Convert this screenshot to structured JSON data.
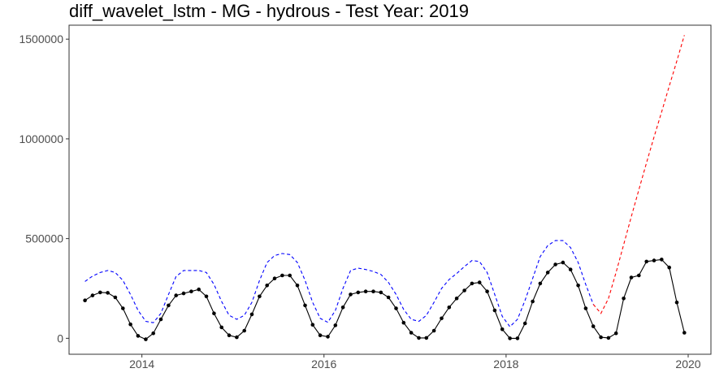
{
  "chart_data": {
    "type": "line",
    "title": "diff_wavelet_lstm - MG - hydrous - Test Year: 2019",
    "xlabel": "",
    "ylabel": "",
    "xlim": [
      2013.2,
      2020.25
    ],
    "ylim": [
      -80000,
      1570000
    ],
    "x_ticks": [
      2014,
      2016,
      2018,
      2020
    ],
    "x_tick_labels": [
      "2014",
      "2016",
      "2018",
      "2020"
    ],
    "y_ticks": [
      0,
      500000,
      1000000,
      1500000
    ],
    "y_tick_labels": [
      "0",
      "500000",
      "1000000",
      "1500000"
    ],
    "grid": false,
    "legend": "none",
    "series": [
      {
        "style": "solid-black-with-points",
        "color": "#000000",
        "points": [
          [
            2013.375,
            190000
          ],
          [
            2013.458,
            215000
          ],
          [
            2013.542,
            230000
          ],
          [
            2013.625,
            228000
          ],
          [
            2013.708,
            205000
          ],
          [
            2013.792,
            150000
          ],
          [
            2013.875,
            70000
          ],
          [
            2013.958,
            12000
          ],
          [
            2014.042,
            -5000
          ],
          [
            2014.125,
            25000
          ],
          [
            2014.208,
            95000
          ],
          [
            2014.292,
            165000
          ],
          [
            2014.375,
            215000
          ],
          [
            2014.458,
            225000
          ],
          [
            2014.542,
            235000
          ],
          [
            2014.625,
            245000
          ],
          [
            2014.708,
            210000
          ],
          [
            2014.792,
            125000
          ],
          [
            2014.875,
            55000
          ],
          [
            2014.958,
            15000
          ],
          [
            2015.042,
            5000
          ],
          [
            2015.125,
            38000
          ],
          [
            2015.208,
            120000
          ],
          [
            2015.292,
            210000
          ],
          [
            2015.375,
            265000
          ],
          [
            2015.458,
            300000
          ],
          [
            2015.542,
            315000
          ],
          [
            2015.625,
            315000
          ],
          [
            2015.708,
            265000
          ],
          [
            2015.792,
            165000
          ],
          [
            2015.875,
            68000
          ],
          [
            2015.958,
            15000
          ],
          [
            2016.042,
            8000
          ],
          [
            2016.125,
            65000
          ],
          [
            2016.208,
            155000
          ],
          [
            2016.292,
            220000
          ],
          [
            2016.375,
            230000
          ],
          [
            2016.458,
            235000
          ],
          [
            2016.542,
            235000
          ],
          [
            2016.625,
            230000
          ],
          [
            2016.708,
            205000
          ],
          [
            2016.792,
            150000
          ],
          [
            2016.875,
            78000
          ],
          [
            2016.958,
            28000
          ],
          [
            2017.042,
            2000
          ],
          [
            2017.125,
            2000
          ],
          [
            2017.208,
            38000
          ],
          [
            2017.292,
            100000
          ],
          [
            2017.375,
            155000
          ],
          [
            2017.458,
            200000
          ],
          [
            2017.542,
            240000
          ],
          [
            2017.625,
            275000
          ],
          [
            2017.708,
            280000
          ],
          [
            2017.792,
            235000
          ],
          [
            2017.875,
            140000
          ],
          [
            2017.958,
            45000
          ],
          [
            2018.042,
            0
          ],
          [
            2018.125,
            0
          ],
          [
            2018.208,
            75000
          ],
          [
            2018.292,
            185000
          ],
          [
            2018.375,
            275000
          ],
          [
            2018.458,
            330000
          ],
          [
            2018.542,
            370000
          ],
          [
            2018.625,
            380000
          ],
          [
            2018.708,
            345000
          ],
          [
            2018.792,
            265000
          ],
          [
            2018.875,
            150000
          ],
          [
            2018.958,
            60000
          ],
          [
            2019.042,
            5000
          ],
          [
            2019.125,
            2000
          ],
          [
            2019.208,
            25000
          ],
          [
            2019.292,
            200000
          ],
          [
            2019.375,
            305000
          ],
          [
            2019.458,
            315000
          ],
          [
            2019.542,
            385000
          ],
          [
            2019.625,
            390000
          ],
          [
            2019.708,
            395000
          ],
          [
            2019.792,
            355000
          ],
          [
            2019.875,
            180000
          ],
          [
            2019.958,
            28000
          ]
        ]
      },
      {
        "style": "dashed",
        "color": "#0000ff",
        "points": [
          [
            2013.375,
            285000
          ],
          [
            2013.458,
            312000
          ],
          [
            2013.542,
            330000
          ],
          [
            2013.625,
            340000
          ],
          [
            2013.708,
            330000
          ],
          [
            2013.792,
            290000
          ],
          [
            2013.875,
            220000
          ],
          [
            2013.958,
            140000
          ],
          [
            2014.042,
            85000
          ],
          [
            2014.125,
            78000
          ],
          [
            2014.208,
            125000
          ],
          [
            2014.292,
            220000
          ],
          [
            2014.375,
            310000
          ],
          [
            2014.458,
            340000
          ],
          [
            2014.542,
            340000
          ],
          [
            2014.625,
            340000
          ],
          [
            2014.708,
            330000
          ],
          [
            2014.792,
            270000
          ],
          [
            2014.875,
            185000
          ],
          [
            2014.958,
            115000
          ],
          [
            2015.042,
            95000
          ],
          [
            2015.125,
            115000
          ],
          [
            2015.208,
            180000
          ],
          [
            2015.292,
            290000
          ],
          [
            2015.375,
            380000
          ],
          [
            2015.458,
            415000
          ],
          [
            2015.542,
            425000
          ],
          [
            2015.625,
            420000
          ],
          [
            2015.708,
            380000
          ],
          [
            2015.792,
            290000
          ],
          [
            2015.875,
            180000
          ],
          [
            2015.958,
            100000
          ],
          [
            2016.042,
            80000
          ],
          [
            2016.125,
            140000
          ],
          [
            2016.208,
            250000
          ],
          [
            2016.292,
            340000
          ],
          [
            2016.375,
            352000
          ],
          [
            2016.458,
            345000
          ],
          [
            2016.542,
            335000
          ],
          [
            2016.625,
            320000
          ],
          [
            2016.708,
            280000
          ],
          [
            2016.792,
            220000
          ],
          [
            2016.875,
            145000
          ],
          [
            2016.958,
            95000
          ],
          [
            2017.042,
            85000
          ],
          [
            2017.125,
            115000
          ],
          [
            2017.208,
            180000
          ],
          [
            2017.292,
            250000
          ],
          [
            2017.375,
            295000
          ],
          [
            2017.458,
            325000
          ],
          [
            2017.542,
            360000
          ],
          [
            2017.625,
            390000
          ],
          [
            2017.708,
            385000
          ],
          [
            2017.792,
            330000
          ],
          [
            2017.875,
            220000
          ],
          [
            2017.958,
            110000
          ],
          [
            2018.042,
            58000
          ],
          [
            2018.125,
            95000
          ],
          [
            2018.208,
            190000
          ],
          [
            2018.292,
            300000
          ],
          [
            2018.375,
            410000
          ],
          [
            2018.458,
            465000
          ],
          [
            2018.542,
            490000
          ],
          [
            2018.625,
            490000
          ],
          [
            2018.708,
            455000
          ],
          [
            2018.792,
            380000
          ],
          [
            2018.875,
            270000
          ],
          [
            2018.958,
            170000
          ]
        ]
      },
      {
        "style": "dashed",
        "color": "#ff0000",
        "points": [
          [
            2018.958,
            170000
          ],
          [
            2019.042,
            125000
          ],
          [
            2019.125,
            200000
          ],
          [
            2019.208,
            330000
          ],
          [
            2019.292,
            470000
          ],
          [
            2019.375,
            610000
          ],
          [
            2019.458,
            745000
          ],
          [
            2019.542,
            880000
          ],
          [
            2019.625,
            1010000
          ],
          [
            2019.708,
            1135000
          ],
          [
            2019.792,
            1265000
          ],
          [
            2019.875,
            1390000
          ],
          [
            2019.958,
            1520000
          ]
        ]
      }
    ]
  }
}
